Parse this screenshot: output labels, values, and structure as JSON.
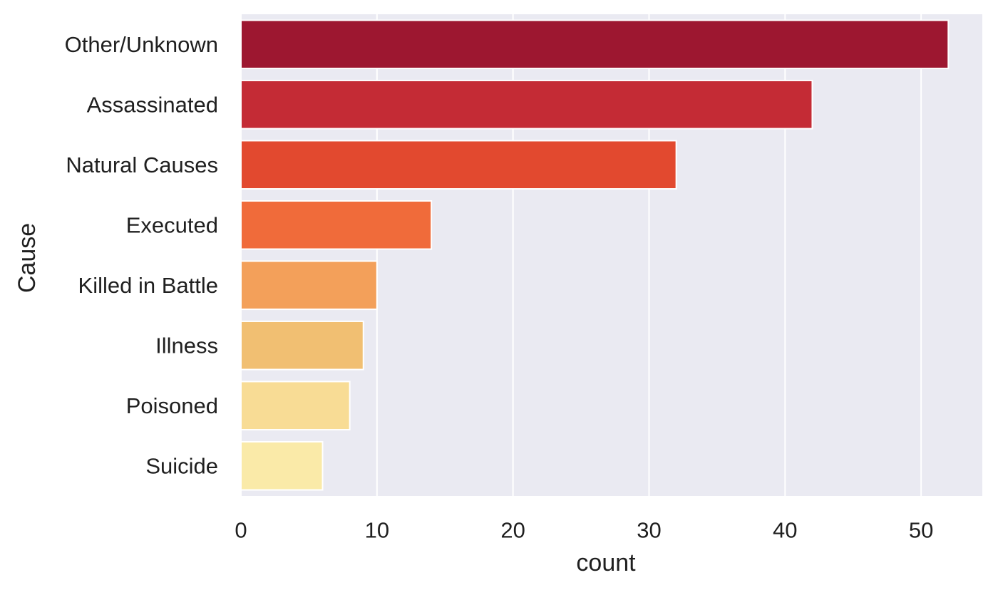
{
  "chart_data": {
    "type": "bar",
    "orientation": "horizontal",
    "categories": [
      "Other/Unknown",
      "Assassinated",
      "Natural Causes",
      "Executed",
      "Killed in Battle",
      "Illness",
      "Poisoned",
      "Suicide"
    ],
    "values": [
      52,
      42,
      32,
      14,
      10,
      9,
      8,
      6
    ],
    "colors": [
      "#9d1730",
      "#c42b35",
      "#e2492f",
      "#f06b3a",
      "#f3a05a",
      "#f1bf72",
      "#f8dc95",
      "#faeaa8"
    ],
    "title": "",
    "xlabel": "count",
    "ylabel": "Cause",
    "xlim": [
      0,
      54.5
    ],
    "xticks": [
      0,
      10,
      20,
      30,
      40,
      50
    ],
    "grid": true,
    "background": "#eaeaf2",
    "grid_color": "#ffffff"
  }
}
